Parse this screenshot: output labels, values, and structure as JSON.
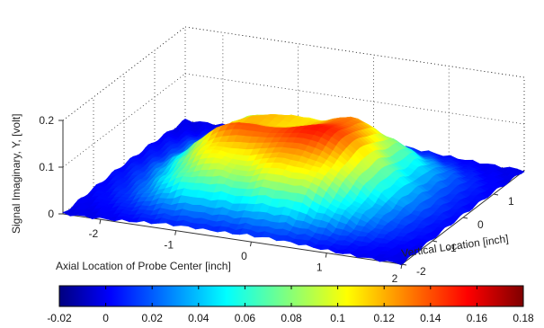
{
  "chart_data": {
    "type": "surface3d",
    "zlabel": "Signal Imaginary, Y, [volt]",
    "xlabel": "Axial Location of Probe Center [inch]",
    "ylabel": "Vertical Location [inch]",
    "x_ticks": [
      "-2",
      "-1",
      "0",
      "1",
      "2"
    ],
    "y_ticks": [
      "-2",
      "-1",
      "0",
      "1"
    ],
    "z_ticks": [
      "0",
      "0.1",
      "0.2"
    ],
    "xlim": [
      -2.5,
      2
    ],
    "ylim": [
      -2,
      2
    ],
    "zlim": [
      0,
      0.2
    ],
    "grid": true,
    "colormap": "jet",
    "colorbar": {
      "location": "bottom",
      "range": [
        -0.02,
        0.18
      ],
      "ticks": [
        "-0.02",
        "0",
        "0.02",
        "0.04",
        "0.06",
        "0.08",
        "0.1",
        "0.12",
        "0.14",
        "0.16",
        "0.18"
      ]
    },
    "surface": {
      "description_values": "plateau",
      "plateau_x_range": [
        -1.5,
        1.0
      ],
      "plateau_y_range": [
        -1.3,
        1.3
      ],
      "plateau_height": 0.15,
      "background_level": 0.0
    }
  }
}
